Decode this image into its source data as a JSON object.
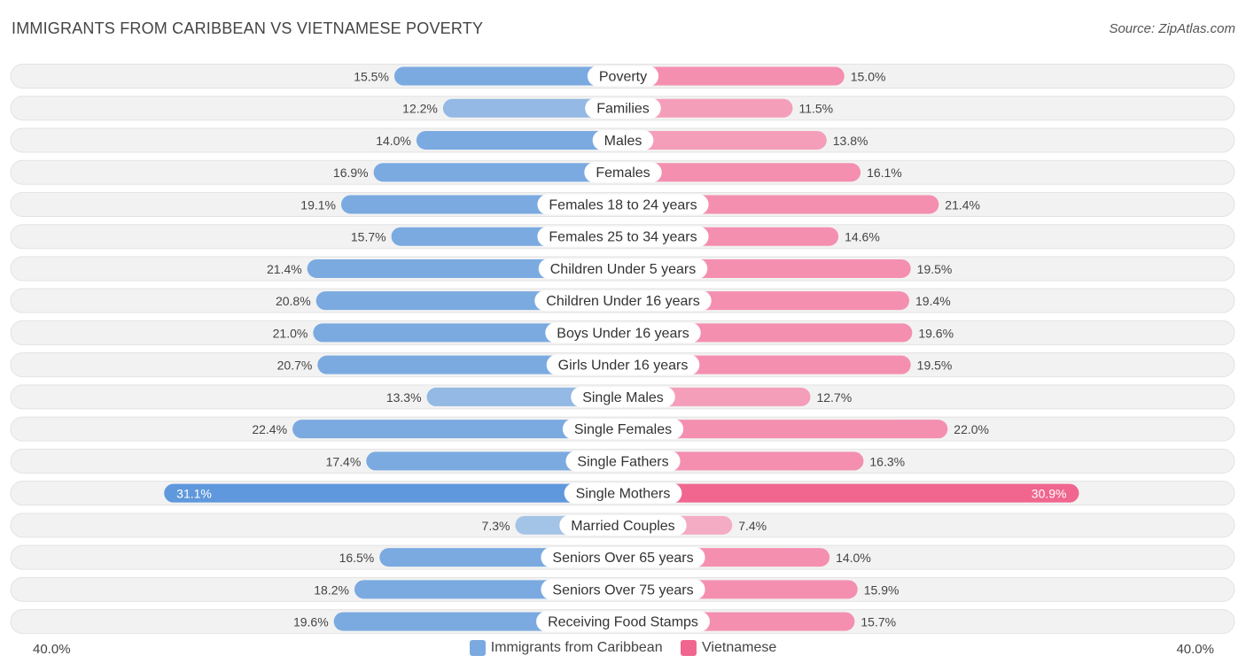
{
  "title": "IMMIGRANTS FROM CARIBBEAN VS VIETNAMESE POVERTY",
  "source": "Source: ZipAtlas.com",
  "axis": {
    "left_label": "40.0%",
    "right_label": "40.0%"
  },
  "colors": {
    "left_bar": "#7aaae0",
    "left_bar_strong": "#5f98dc",
    "right_bar": "#f48fb0",
    "right_bar_strong": "#f0668f",
    "row_bg": "#efefef",
    "row_border": "#e0e0e0"
  },
  "chart_data": {
    "type": "bar",
    "orientation": "horizontal-diverging",
    "max": 40.0,
    "categories": [
      "Poverty",
      "Families",
      "Males",
      "Females",
      "Females 18 to 24 years",
      "Females 25 to 34 years",
      "Children Under 5 years",
      "Children Under 16 years",
      "Boys Under 16 years",
      "Girls Under 16 years",
      "Single Males",
      "Single Females",
      "Single Fathers",
      "Single Mothers",
      "Married Couples",
      "Seniors Over 65 years",
      "Seniors Over 75 years",
      "Receiving Food Stamps"
    ],
    "series": [
      {
        "name": "Immigrants from Caribbean",
        "values": [
          15.5,
          12.2,
          14.0,
          16.9,
          19.1,
          15.7,
          21.4,
          20.8,
          21.0,
          20.7,
          13.3,
          22.4,
          17.4,
          31.1,
          7.3,
          16.5,
          18.2,
          19.6
        ],
        "labels": [
          "15.5%",
          "12.2%",
          "14.0%",
          "16.9%",
          "19.1%",
          "15.7%",
          "21.4%",
          "20.8%",
          "21.0%",
          "20.7%",
          "13.3%",
          "22.4%",
          "17.4%",
          "31.1%",
          "7.3%",
          "16.5%",
          "18.2%",
          "19.6%"
        ]
      },
      {
        "name": "Vietnamese",
        "values": [
          15.0,
          11.5,
          13.8,
          16.1,
          21.4,
          14.6,
          19.5,
          19.4,
          19.6,
          19.5,
          12.7,
          22.0,
          16.3,
          30.9,
          7.4,
          14.0,
          15.9,
          15.7
        ],
        "labels": [
          "15.0%",
          "11.5%",
          "13.8%",
          "16.1%",
          "21.4%",
          "14.6%",
          "19.5%",
          "19.4%",
          "19.6%",
          "19.5%",
          "12.7%",
          "22.0%",
          "16.3%",
          "30.9%",
          "7.4%",
          "14.0%",
          "15.9%",
          "15.7%"
        ]
      }
    ]
  }
}
